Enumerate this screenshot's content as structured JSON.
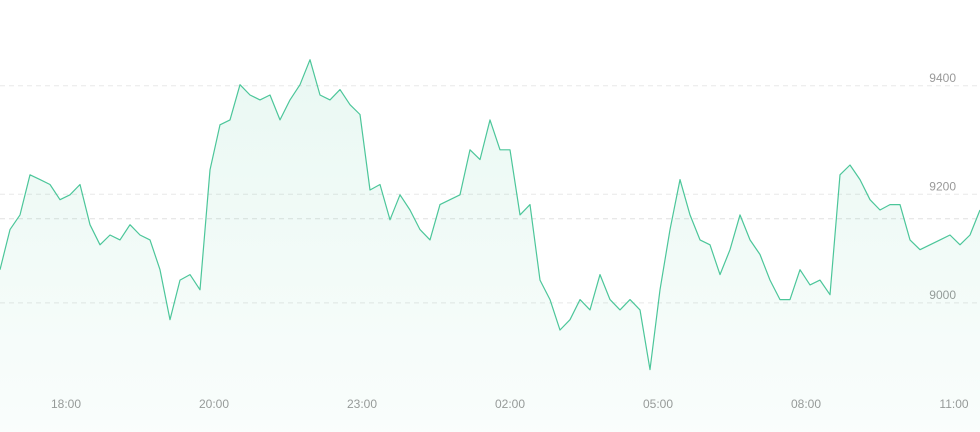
{
  "chart_data": {
    "type": "line",
    "values": [
      9061,
      9135,
      9162,
      9236,
      9227,
      9218,
      9190,
      9199,
      9218,
      9144,
      9107,
      9125,
      9116,
      9144,
      9125,
      9116,
      9061,
      8969,
      9042,
      9052,
      9024,
      9245,
      9328,
      9337,
      9402,
      9383,
      9374,
      9383,
      9337,
      9374,
      9402,
      9448,
      9383,
      9374,
      9393,
      9365,
      9347,
      9208,
      9218,
      9153,
      9199,
      9171,
      9135,
      9116,
      9181,
      9190,
      9199,
      9282,
      9264,
      9337,
      9282,
      9282,
      9162,
      9181,
      9042,
      9006,
      8950,
      8969,
      9006,
      8987,
      9052,
      9006,
      8987,
      9006,
      8987,
      8877,
      9024,
      9135,
      9227,
      9162,
      9116,
      9107,
      9052,
      9098,
      9162,
      9116,
      9089,
      9042,
      9006,
      9006,
      9061,
      9033,
      9042,
      9015,
      9236,
      9254,
      9227,
      9190,
      9171,
      9181,
      9181,
      9116,
      9098,
      9107,
      9116,
      9125,
      9107,
      9125,
      9171
    ],
    "color": "#4cc69a",
    "xlim": [
      0,
      98
    ],
    "xticks": [
      {
        "value": 6.6,
        "label": "18:00"
      },
      {
        "value": 21.4,
        "label": "20:00"
      },
      {
        "value": 36.2,
        "label": "23:00"
      },
      {
        "value": 51,
        "label": "02:00"
      },
      {
        "value": 65.8,
        "label": "05:00"
      },
      {
        "value": 80.6,
        "label": "08:00"
      },
      {
        "value": 95.4,
        "label": "11:00"
      }
    ],
    "ylim": [
      8821,
      9558
    ],
    "yticks": [
      9000,
      9200,
      9400
    ],
    "reference_line": 9155,
    "grid": true
  }
}
